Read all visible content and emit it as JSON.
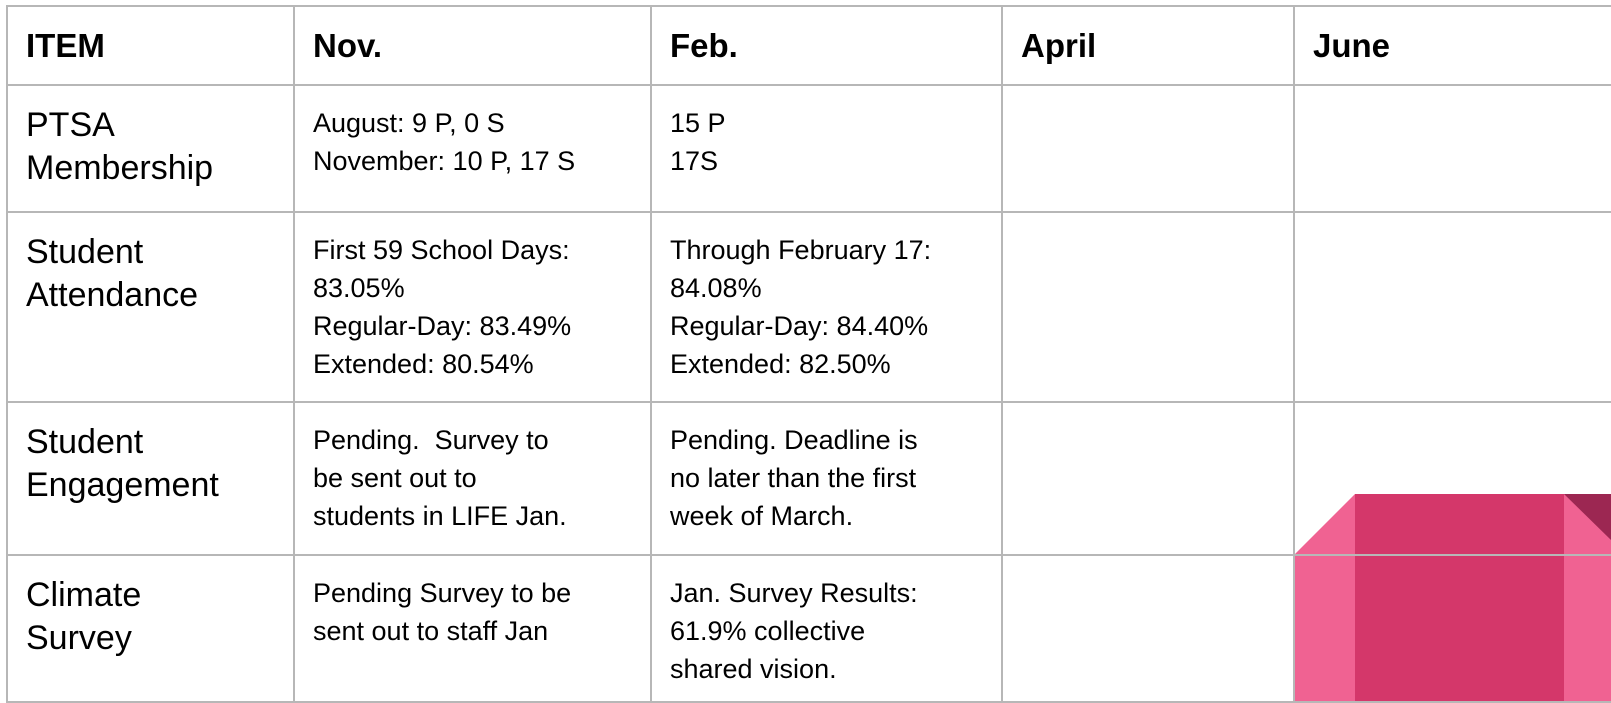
{
  "table": {
    "header": [
      "ITEM",
      "Nov.",
      "Feb.",
      "April",
      "June"
    ],
    "rows": [
      {
        "item": [
          "PTSA",
          "Membership"
        ],
        "cells": [
          [
            "August: 9 P, 0 S",
            "November: 10 P, 17 S"
          ],
          [
            "15 P",
            "17S"
          ],
          [],
          []
        ]
      },
      {
        "item": [
          "Student",
          "Attendance"
        ],
        "cells": [
          [
            "First 59 School Days:",
            "83.05%",
            "Regular-Day: 83.49%",
            "Extended: 80.54%"
          ],
          [
            "Through February 17:",
            "84.08%",
            "Regular-Day: 84.40%",
            "Extended: 82.50%"
          ],
          [],
          []
        ]
      },
      {
        "item": [
          "Student",
          "Engagement"
        ],
        "cells": [
          [
            "Pending.  Survey to",
            "be sent out to",
            "students in LIFE Jan."
          ],
          [
            "Pending. Deadline is",
            "no later than the first",
            "week of March."
          ],
          [],
          []
        ]
      },
      {
        "item": [
          "Climate",
          "Survey"
        ],
        "cells": [
          [
            "Pending Survey to be",
            "sent out to staff Jan"
          ],
          [
            "Jan. Survey Results:",
            "61.9% collective",
            "shared vision."
          ],
          [],
          []
        ]
      }
    ]
  }
}
